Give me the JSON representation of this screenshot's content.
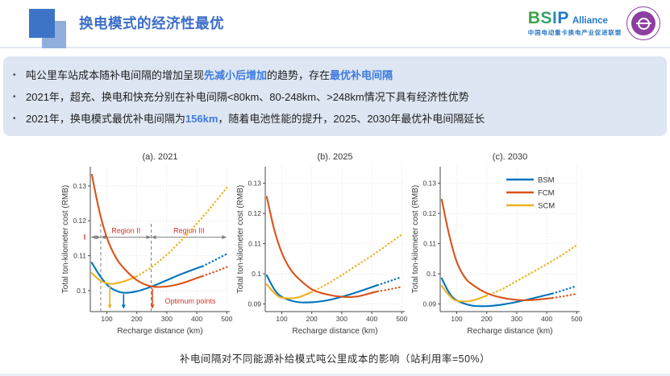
{
  "header": {
    "title": "换电模式的经济性最优",
    "logo": {
      "brand_letters": [
        {
          "ch": "B",
          "color": "#3fa347"
        },
        {
          "ch": "S",
          "color": "#36a06b"
        },
        {
          "ch": "I",
          "color": "#2b8fb0"
        },
        {
          "ch": "P",
          "color": "#2478c8"
        }
      ],
      "suffix": "Alliance",
      "subtitle": "中国电动重卡换电产业促进联盟"
    }
  },
  "bullets": [
    [
      {
        "t": "吨公里车站成本随补电间隔的增加呈现"
      },
      {
        "t": "先减小后增加",
        "hl": true
      },
      {
        "t": "的趋势，存在"
      },
      {
        "t": "最优补电间隔",
        "hl": true
      }
    ],
    [
      {
        "t": "2021年，超充、换电和快充分别在补电间隔<80km、80-248km、>248km情况下具有经济性优势"
      }
    ],
    [
      {
        "t": "2021年，换电模式最优补电间隔为"
      },
      {
        "t": "156km",
        "hl": true
      },
      {
        "t": "，随着电池性能的提升，2025、2030年最优补电间隔延长"
      }
    ]
  ],
  "caption": "补电间隔对不同能源补给模式吨公里成本的影响（站利用率=50%）",
  "colors": {
    "bsm": "#0072BD",
    "fcm": "#D95319",
    "scm": "#EDB120",
    "annotation_red": "#d63426",
    "annotation_gray": "#808080"
  },
  "chart_data": [
    {
      "type": "line",
      "title": "(a). 2021",
      "xlabel": "Recharge distance (km)",
      "ylabel": "Total ton-kilometer cost (RMB)",
      "xlim": [
        45,
        510
      ],
      "ylim": [
        0.094,
        0.1355
      ],
      "xticks": [
        100,
        200,
        300,
        400,
        500
      ],
      "yticks": [
        0.1,
        0.11,
        0.12,
        0.13
      ],
      "series": [
        {
          "name": "BSM",
          "color": "#0072BD",
          "solid": {
            "x": [
              50,
              75,
              100,
              125,
              156,
              200,
              250,
              300,
              350,
              400,
              420
            ],
            "y": [
              0.108,
              0.1045,
              0.1018,
              0.1002,
              0.0994,
              0.0998,
              0.1012,
              0.103,
              0.1048,
              0.1064,
              0.107
            ]
          },
          "dotted": {
            "x": [
              420,
              450,
              475,
              500
            ],
            "y": [
              0.107,
              0.1083,
              0.1094,
              0.1105
            ]
          }
        },
        {
          "name": "SCM",
          "color": "#EDB120",
          "solid": {
            "x": [
              50,
              75,
              100,
              125,
              150,
              175,
              200
            ],
            "y": [
              0.105,
              0.1031,
              0.1021,
              0.102,
              0.1025,
              0.1032,
              0.1041
            ]
          },
          "dotted": {
            "x": [
              200,
              250,
              300,
              350,
              400,
              450,
              500
            ],
            "y": [
              0.1041,
              0.1068,
              0.1103,
              0.1145,
              0.1192,
              0.1242,
              0.1295
            ]
          }
        },
        {
          "name": "FCM",
          "color": "#D95319",
          "solid": {
            "x": [
              50,
              75,
              100,
              125,
              150,
              200,
              250,
              300,
              350,
              400,
              420
            ],
            "y": [
              0.1332,
              0.1228,
              0.1152,
              0.1103,
              0.1071,
              0.103,
              0.1012,
              0.1012,
              0.1021,
              0.1036,
              0.1042
            ]
          },
          "dotted": {
            "x": [
              420,
              450,
              475,
              500
            ],
            "y": [
              0.1042,
              0.1051,
              0.1059,
              0.1068
            ]
          }
        }
      ],
      "annotations": {
        "accent": "#d63426",
        "gray": "#808080",
        "vlines": [
          {
            "x": 80,
            "y1": 0.094,
            "y2": 0.1195
          },
          {
            "x": 248,
            "y1": 0.094,
            "y2": 0.1195
          }
        ],
        "harrows": [
          {
            "x1": 47,
            "x2": 80,
            "y": 0.1153
          },
          {
            "x1": 80,
            "x2": 248,
            "y": 0.1153,
            "label": "Region II"
          },
          {
            "x1": 248,
            "x2": 500,
            "y": 0.1153,
            "label": "Region III"
          }
        ],
        "side_label": "I",
        "down_arrows": [
          {
            "x": 110,
            "y1": 0.1014,
            "y2": 0.0948,
            "color": "#EDB120"
          },
          {
            "x": 156,
            "y1": 0.099,
            "y2": 0.0948,
            "color": "#0072BD"
          },
          {
            "x": 252,
            "y1": 0.1006,
            "y2": 0.0948,
            "color": "#D95319"
          }
        ],
        "optimum_label": {
          "text": "Optimum points",
          "x": 378,
          "y": 0.0963
        }
      }
    },
    {
      "type": "line",
      "title": "(b). 2025",
      "xlabel": "Recharge distance (km)",
      "ylabel": "Total ton-kilometer cost (RMB)",
      "xlim": [
        45,
        510
      ],
      "ylim": [
        0.0875,
        0.1355
      ],
      "xticks": [
        100,
        200,
        300,
        400,
        500
      ],
      "yticks": [
        0.09,
        0.1,
        0.11,
        0.12,
        0.13
      ],
      "series": [
        {
          "name": "BSM",
          "color": "#0072BD",
          "solid": {
            "x": [
              50,
              75,
              100,
              150,
              200,
              250,
              300,
              350,
              400,
              420
            ],
            "y": [
              0.0995,
              0.0949,
              0.0924,
              0.0907,
              0.0906,
              0.0912,
              0.0924,
              0.0939,
              0.0956,
              0.0963
            ]
          },
          "dotted": {
            "x": [
              420,
              450,
              475,
              500
            ],
            "y": [
              0.0963,
              0.0973,
              0.0981,
              0.099
            ]
          }
        },
        {
          "name": "SCM",
          "color": "#EDB120",
          "solid": {
            "x": [
              50,
              75,
              100,
              150,
              200
            ],
            "y": [
              0.0965,
              0.0937,
              0.0921,
              0.0921,
              0.094
            ]
          },
          "dotted": {
            "x": [
              200,
              250,
              300,
              350,
              400,
              450,
              500
            ],
            "y": [
              0.094,
              0.0966,
              0.0996,
              0.1028,
              0.106,
              0.1095,
              0.113
            ]
          }
        },
        {
          "name": "FCM",
          "color": "#D95319",
          "solid": {
            "x": [
              50,
              75,
              100,
              125,
              150,
              200,
              250,
              300,
              350,
              400,
              420
            ],
            "y": [
              0.1255,
              0.1146,
              0.107,
              0.1021,
              0.099,
              0.0949,
              0.0932,
              0.0924,
              0.0925,
              0.0937,
              0.0942
            ]
          },
          "dotted": {
            "x": [
              420,
              450,
              475,
              500
            ],
            "y": [
              0.0942,
              0.0947,
              0.0952,
              0.0957
            ]
          }
        }
      ]
    },
    {
      "type": "line",
      "title": "(c). 2030",
      "xlabel": "Recharge distance (km)",
      "ylabel": "Total ton-kilometer cost (RMB)",
      "xlim": [
        45,
        510
      ],
      "ylim": [
        0.0875,
        0.1355
      ],
      "xticks": [
        100,
        200,
        300,
        400,
        500
      ],
      "yticks": [
        0.09,
        0.1,
        0.11,
        0.12,
        0.13
      ],
      "legend": [
        "BSM",
        "FCM",
        "SCM"
      ],
      "series": [
        {
          "name": "BSM",
          "color": "#0072BD",
          "solid": {
            "x": [
              50,
              75,
              100,
              150,
              200,
              250,
              300,
              350,
              400,
              420
            ],
            "y": [
              0.0985,
              0.0937,
              0.0912,
              0.0895,
              0.0893,
              0.0898,
              0.0907,
              0.0918,
              0.093,
              0.0935
            ]
          },
          "dotted": {
            "x": [
              420,
              450,
              475,
              500
            ],
            "y": [
              0.0935,
              0.0944,
              0.0952,
              0.096
            ]
          }
        },
        {
          "name": "SCM",
          "color": "#EDB120",
          "solid": {
            "x": [
              50,
              75,
              100,
              150,
              200
            ],
            "y": [
              0.096,
              0.0929,
              0.0911,
              0.0911,
              0.0928
            ]
          },
          "dotted": {
            "x": [
              200,
              250,
              300,
              350,
              400,
              450,
              500
            ],
            "y": [
              0.0928,
              0.0949,
              0.0976,
              0.1004,
              0.1032,
              0.1062,
              0.1095
            ]
          }
        },
        {
          "name": "FCM",
          "color": "#D95319",
          "solid": {
            "x": [
              50,
              75,
              100,
              125,
              150,
              200,
              250,
              300,
              350,
              400,
              420
            ],
            "y": [
              0.1246,
              0.1128,
              0.104,
              0.0991,
              0.0966,
              0.0936,
              0.0921,
              0.0914,
              0.0913,
              0.0918,
              0.092
            ]
          },
          "dotted": {
            "x": [
              420,
              450,
              475,
              500
            ],
            "y": [
              0.092,
              0.0925,
              0.0929,
              0.0934
            ]
          }
        }
      ]
    }
  ]
}
